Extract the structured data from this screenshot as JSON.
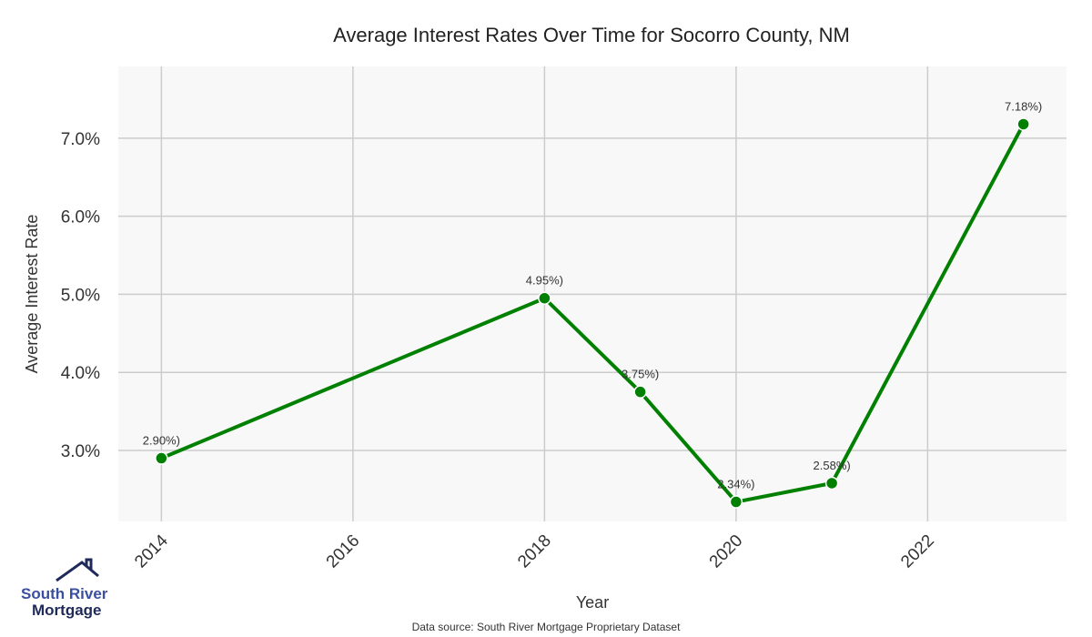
{
  "chart_data": {
    "type": "line",
    "title": "Average Interest Rates Over Time for Socorro County, NM",
    "xlabel": "Year",
    "ylabel": "Average Interest Rate",
    "x": [
      2014,
      2018,
      2019,
      2020,
      2021,
      2023
    ],
    "values": [
      2.9,
      4.95,
      3.75,
      2.34,
      2.58,
      7.18
    ],
    "data_labels": [
      "2.90%)",
      "4.95%)",
      "3.75%)",
      "2.34%)",
      "2.58%)",
      "7.18%)"
    ],
    "xticks": [
      2014,
      2016,
      2018,
      2020,
      2022
    ],
    "yticks": [
      3.0,
      4.0,
      5.0,
      6.0,
      7.0
    ],
    "ytick_labels": [
      "3.0%",
      "4.0%",
      "5.0%",
      "6.0%",
      "7.0%"
    ],
    "xlim": [
      2013.55,
      2023.45
    ],
    "ylim": [
      2.09,
      7.92
    ],
    "grid": true,
    "line_color": "#008000",
    "plot_bg": "#f8f8f8",
    "grid_color": "#cccccc"
  },
  "footer": {
    "source": "Data source: South River Mortgage Proprietary Dataset"
  },
  "logo": {
    "line1": "South River",
    "line2": "Mortgage"
  }
}
